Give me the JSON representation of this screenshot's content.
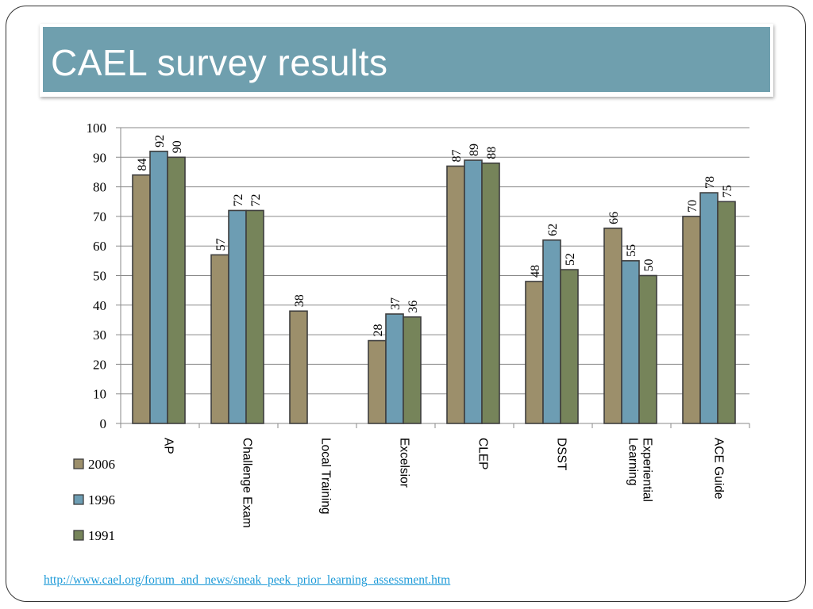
{
  "slide": {
    "title": "CAEL survey results",
    "source_link": "http://www.cael.org/forum_and_news/sneak_peek_prior_learning_assessment.htm"
  },
  "chart_data": {
    "type": "bar",
    "title": "",
    "xlabel": "",
    "ylabel": "",
    "ylim": [
      0,
      100
    ],
    "yticks": [
      0,
      10,
      20,
      30,
      40,
      50,
      60,
      70,
      80,
      90,
      100
    ],
    "grid": true,
    "legend_position": "bottom-left",
    "categories": [
      [
        "AP"
      ],
      [
        "Challenge Exam"
      ],
      [
        "Local Training"
      ],
      [
        "Excelsior"
      ],
      [
        "CLEP"
      ],
      [
        "DSST"
      ],
      [
        "Experiential",
        "Learning"
      ],
      [
        "ACE Guide"
      ]
    ],
    "series": [
      {
        "name": "2006",
        "color": "#9c8f6b",
        "values": [
          84,
          57,
          38,
          28,
          87,
          48,
          66,
          70
        ]
      },
      {
        "name": "1996",
        "color": "#6d9db3",
        "values": [
          92,
          72,
          null,
          37,
          89,
          62,
          55,
          78
        ]
      },
      {
        "name": "1991",
        "color": "#76845a",
        "values": [
          90,
          72,
          null,
          36,
          88,
          52,
          50,
          75
        ]
      }
    ]
  }
}
